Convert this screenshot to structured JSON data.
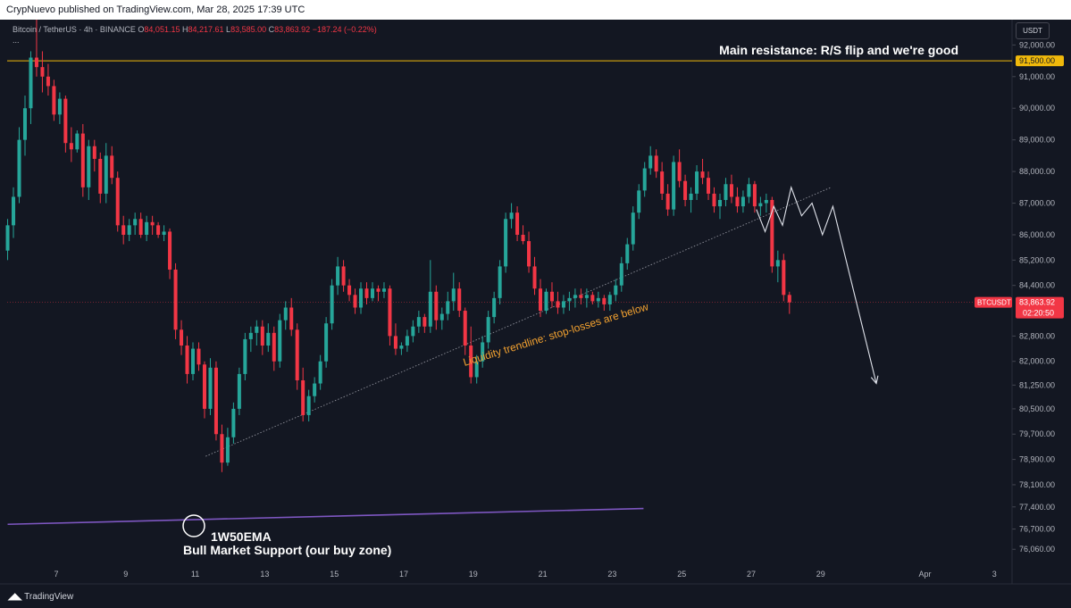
{
  "header": {
    "published_text": "CrypNuevo published on TradingView.com, Mar 28, 2025 17:39 UTC"
  },
  "legend": {
    "symbol": "Bitcoin / TetherUS · 4h · BINANCE",
    "open_label": "O",
    "open_value": "84,051.15",
    "high_label": "H",
    "high_value": "84,217.61",
    "low_label": "L",
    "low_value": "83,585.00",
    "close_label": "C",
    "close_value": "83,863.92",
    "change": "−187.24 (−0.22%)",
    "more": "..."
  },
  "currency": "USDT",
  "footer": {
    "brand": "TradingView"
  },
  "colors": {
    "up": "#26a69a",
    "down": "#f23645",
    "resistance": "#f0b90b",
    "ema": "#7e57c2",
    "trendline": "#8d8f99",
    "annotation_orange": "#f0a030",
    "projection": "#e0e3eb"
  },
  "chart_data": {
    "type": "candlestick",
    "symbol": "BTCUSDT",
    "timeframe": "4h",
    "ylim": [
      75700,
      92800
    ],
    "y_ticks": [
      {
        "v": 92000,
        "t": "92,000.00"
      },
      {
        "v": 91000,
        "t": "91,000.00"
      },
      {
        "v": 90000,
        "t": "90,000.00"
      },
      {
        "v": 89000,
        "t": "89,000.00"
      },
      {
        "v": 88000,
        "t": "88,000.00"
      },
      {
        "v": 87000,
        "t": "87,000.00"
      },
      {
        "v": 86000,
        "t": "86,000.00"
      },
      {
        "v": 85200,
        "t": "85,200.00"
      },
      {
        "v": 84400,
        "t": "84,400.00"
      },
      {
        "v": 82800,
        "t": "82,800.00"
      },
      {
        "v": 82000,
        "t": "82,000.00"
      },
      {
        "v": 81250,
        "t": "81,250.00"
      },
      {
        "v": 80500,
        "t": "80,500.00"
      },
      {
        "v": 79700,
        "t": "79,700.00"
      },
      {
        "v": 78900,
        "t": "78,900.00"
      },
      {
        "v": 78100,
        "t": "78,100.00"
      },
      {
        "v": 77400,
        "t": "77,400.00"
      },
      {
        "v": 76700,
        "t": "76,700.00"
      },
      {
        "v": 76060,
        "t": "76,060.00"
      }
    ],
    "x_ticks": [
      {
        "day": 7,
        "t": "7"
      },
      {
        "day": 9,
        "t": "9"
      },
      {
        "day": 11,
        "t": "11"
      },
      {
        "day": 13,
        "t": "13"
      },
      {
        "day": 15,
        "t": "15"
      },
      {
        "day": 17,
        "t": "17"
      },
      {
        "day": 19,
        "t": "19"
      },
      {
        "day": 21,
        "t": "21"
      },
      {
        "day": 23,
        "t": "23"
      },
      {
        "day": 25,
        "t": "25"
      },
      {
        "day": 27,
        "t": "27"
      },
      {
        "day": 29,
        "t": "29"
      },
      {
        "day": 32,
        "t": "Apr"
      },
      {
        "day": 34,
        "t": "3"
      }
    ],
    "start_day": 5.6,
    "candles_per_day": 6,
    "candles": [
      [
        85500,
        86500,
        85200,
        86300
      ],
      [
        86300,
        87500,
        85900,
        87200
      ],
      [
        87200,
        89400,
        87000,
        89000
      ],
      [
        89000,
        90400,
        88500,
        90000
      ],
      [
        90000,
        91800,
        89500,
        91600
      ],
      [
        91600,
        92800,
        91000,
        91300
      ],
      [
        91300,
        91800,
        90500,
        91000
      ],
      [
        91000,
        91400,
        90400,
        90700
      ],
      [
        90700,
        90900,
        89600,
        89800
      ],
      [
        89800,
        90500,
        89500,
        90300
      ],
      [
        90300,
        90400,
        88600,
        88900
      ],
      [
        88900,
        89400,
        88300,
        88700
      ],
      [
        88700,
        89300,
        88600,
        89200
      ],
      [
        89200,
        89500,
        87200,
        87500
      ],
      [
        87500,
        89000,
        87100,
        88800
      ],
      [
        88800,
        89000,
        88000,
        88400
      ],
      [
        88400,
        88600,
        87000,
        87300
      ],
      [
        87300,
        88900,
        87000,
        88500
      ],
      [
        88500,
        88800,
        87600,
        87800
      ],
      [
        87800,
        88000,
        86100,
        86300
      ],
      [
        86300,
        86600,
        85700,
        86000
      ],
      [
        86000,
        86500,
        85800,
        86300
      ],
      [
        86300,
        86700,
        86000,
        86500
      ],
      [
        86500,
        86700,
        85900,
        86000
      ],
      [
        86000,
        86600,
        85800,
        86400
      ],
      [
        86400,
        86600,
        86000,
        86300
      ],
      [
        86300,
        86400,
        85900,
        86000
      ],
      [
        86000,
        86300,
        85800,
        86100
      ],
      [
        86100,
        86200,
        84600,
        84900
      ],
      [
        84900,
        85100,
        82700,
        83000
      ],
      [
        83000,
        83300,
        82200,
        82500
      ],
      [
        82500,
        82800,
        81300,
        81600
      ],
      [
        81600,
        82600,
        81400,
        82400
      ],
      [
        82400,
        82600,
        81700,
        81900
      ],
      [
        81900,
        82000,
        80200,
        80500
      ],
      [
        80500,
        82100,
        80300,
        81800
      ],
      [
        81800,
        82000,
        79500,
        79700
      ],
      [
        79700,
        80000,
        78500,
        78800
      ],
      [
        78800,
        79900,
        78700,
        79600
      ],
      [
        79600,
        80700,
        79400,
        80500
      ],
      [
        80500,
        81800,
        80300,
        81600
      ],
      [
        81600,
        82900,
        81400,
        82700
      ],
      [
        82700,
        83100,
        82300,
        82900
      ],
      [
        82900,
        83300,
        82500,
        83100
      ],
      [
        83100,
        83300,
        82200,
        82500
      ],
      [
        82500,
        83200,
        82300,
        82900
      ],
      [
        82900,
        83100,
        81700,
        82000
      ],
      [
        82000,
        83500,
        81800,
        83300
      ],
      [
        83300,
        83900,
        83000,
        83700
      ],
      [
        83700,
        84000,
        82800,
        83000
      ],
      [
        83000,
        83200,
        81100,
        81400
      ],
      [
        81400,
        81800,
        80100,
        80300
      ],
      [
        80300,
        81100,
        80100,
        80900
      ],
      [
        80900,
        81500,
        80700,
        81300
      ],
      [
        81300,
        82200,
        81100,
        82000
      ],
      [
        82000,
        83400,
        81800,
        83200
      ],
      [
        83200,
        84600,
        83000,
        84400
      ],
      [
        84400,
        85300,
        84100,
        85000
      ],
      [
        85000,
        85200,
        84200,
        84400
      ],
      [
        84400,
        84600,
        83900,
        84100
      ],
      [
        84100,
        84300,
        83500,
        83700
      ],
      [
        83700,
        84500,
        83500,
        84300
      ],
      [
        84300,
        84500,
        83800,
        84000
      ],
      [
        84000,
        84500,
        83900,
        84300
      ],
      [
        84300,
        84400,
        83900,
        84200
      ],
      [
        84200,
        84500,
        84000,
        84300
      ],
      [
        84300,
        84400,
        82500,
        82800
      ],
      [
        82800,
        83200,
        82200,
        82400
      ],
      [
        82400,
        82600,
        82200,
        82500
      ],
      [
        82500,
        83000,
        82300,
        82800
      ],
      [
        82800,
        83300,
        82600,
        83100
      ],
      [
        83100,
        83600,
        82900,
        83400
      ],
      [
        83400,
        83500,
        82900,
        83100
      ],
      [
        83100,
        85200,
        82900,
        84200
      ],
      [
        84200,
        84400,
        83000,
        83300
      ],
      [
        83300,
        83700,
        83000,
        83500
      ],
      [
        83500,
        84200,
        83300,
        83900
      ],
      [
        83900,
        84800,
        83600,
        84300
      ],
      [
        84300,
        84500,
        83400,
        83600
      ],
      [
        83600,
        83700,
        82200,
        82500
      ],
      [
        82500,
        83100,
        81300,
        81500
      ],
      [
        81500,
        82200,
        81300,
        82000
      ],
      [
        82000,
        82800,
        81800,
        82600
      ],
      [
        82600,
        83600,
        82400,
        83400
      ],
      [
        83400,
        84200,
        83200,
        84000
      ],
      [
        84000,
        85200,
        83800,
        85000
      ],
      [
        85000,
        86700,
        84800,
        86500
      ],
      [
        86500,
        87000,
        86200,
        86700
      ],
      [
        86700,
        86900,
        85800,
        86000
      ],
      [
        86000,
        86300,
        85700,
        85800
      ],
      [
        85800,
        86100,
        84800,
        85000
      ],
      [
        85000,
        85300,
        84100,
        84300
      ],
      [
        84300,
        84600,
        83400,
        83600
      ],
      [
        83600,
        84300,
        83500,
        84200
      ],
      [
        84200,
        84500,
        83700,
        83900
      ],
      [
        83900,
        84200,
        83500,
        83700
      ],
      [
        83700,
        84100,
        83500,
        83900
      ],
      [
        83900,
        84200,
        83600,
        84000
      ],
      [
        84000,
        84300,
        83700,
        84100
      ],
      [
        84100,
        84300,
        83800,
        84000
      ],
      [
        84000,
        84300,
        83700,
        84100
      ],
      [
        84100,
        84200,
        83800,
        83900
      ],
      [
        83900,
        84200,
        83700,
        84000
      ],
      [
        84000,
        84100,
        83600,
        83800
      ],
      [
        83800,
        84200,
        83600,
        84100
      ],
      [
        84100,
        84600,
        83900,
        84400
      ],
      [
        84400,
        85300,
        84200,
        85100
      ],
      [
        85100,
        85900,
        84900,
        85700
      ],
      [
        85700,
        86900,
        85500,
        86700
      ],
      [
        86700,
        87600,
        86500,
        87400
      ],
      [
        87400,
        88300,
        87200,
        88100
      ],
      [
        88100,
        88800,
        87900,
        88500
      ],
      [
        88500,
        88700,
        87800,
        88000
      ],
      [
        88000,
        88300,
        87100,
        87300
      ],
      [
        87300,
        87600,
        86600,
        86800
      ],
      [
        86800,
        88500,
        86600,
        88300
      ],
      [
        88300,
        88700,
        87500,
        87700
      ],
      [
        87700,
        87900,
        86900,
        87100
      ],
      [
        87100,
        87500,
        86700,
        87300
      ],
      [
        87300,
        88200,
        87100,
        88000
      ],
      [
        88000,
        88400,
        87600,
        87800
      ],
      [
        87800,
        88000,
        87100,
        87300
      ],
      [
        87300,
        87500,
        86700,
        86900
      ],
      [
        86900,
        87300,
        86500,
        87100
      ],
      [
        87100,
        87800,
        86900,
        87600
      ],
      [
        87600,
        87900,
        87000,
        87200
      ],
      [
        87200,
        87500,
        86700,
        86900
      ],
      [
        86900,
        87400,
        86700,
        87200
      ],
      [
        87200,
        87800,
        87000,
        87600
      ],
      [
        87600,
        87700,
        86700,
        86900
      ],
      [
        86900,
        87200,
        86600,
        87000
      ],
      [
        87000,
        87300,
        86700,
        87100
      ],
      [
        87100,
        87200,
        84800,
        85000
      ],
      [
        85000,
        85500,
        84500,
        85200
      ],
      [
        85200,
        85400,
        83900,
        84100
      ],
      [
        84100,
        84200,
        83500,
        83863.92
      ]
    ],
    "current_price": 83863.92,
    "current_price_label": "83,863.92",
    "ticker_label": "BTCUSDT",
    "countdown": "02:20:50",
    "resistance": {
      "price": 91500,
      "label": "91,500.00"
    },
    "ema": {
      "name": "1W50EMA",
      "start_day": 5.6,
      "start_price": 76850,
      "end_day": 23.9,
      "end_price": 77350
    },
    "trendline": {
      "start_day": 11.3,
      "start_price": 79000,
      "end_day": 29.3,
      "end_price": 87500
    },
    "projection": [
      {
        "day": 27.15,
        "price": 86800
      },
      {
        "day": 27.4,
        "price": 86100
      },
      {
        "day": 27.65,
        "price": 86900
      },
      {
        "day": 27.9,
        "price": 86300
      },
      {
        "day": 28.15,
        "price": 87500
      },
      {
        "day": 28.45,
        "price": 86600
      },
      {
        "day": 28.75,
        "price": 87000
      },
      {
        "day": 29.05,
        "price": 86000
      },
      {
        "day": 29.35,
        "price": 86900
      },
      {
        "day": 30.6,
        "price": 81300
      }
    ],
    "annotations": {
      "resistance_text": "Main resistance: R/S flip and we're good",
      "trendline_text": "Liquidity trendline: stop-losses are below",
      "ema_label": "1W50EMA",
      "ema_sublabel": "Bull Market Support (our buy zone)"
    }
  }
}
